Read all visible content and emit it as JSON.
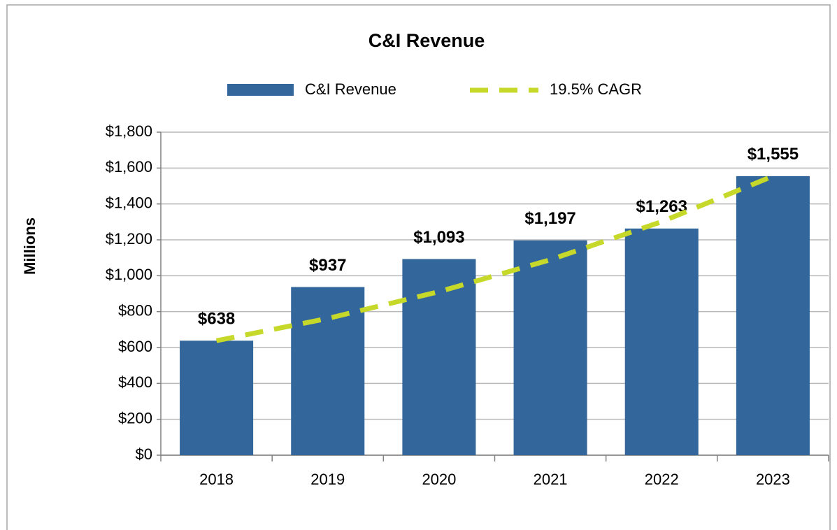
{
  "chart_data": {
    "type": "bar",
    "title": "C&I Revenue",
    "ylabel": "Millions",
    "categories": [
      "2018",
      "2019",
      "2020",
      "2021",
      "2022",
      "2023"
    ],
    "series": [
      {
        "name": "C&I Revenue",
        "type": "bar",
        "color": "#33669a",
        "values": [
          638,
          937,
          1093,
          1197,
          1263,
          1555
        ],
        "value_labels": [
          "$638",
          "$937",
          "$1,093",
          "$1,197",
          "$1,263",
          "$1,555"
        ]
      },
      {
        "name": "19.5% CAGR",
        "type": "line",
        "color": "#c6d82a",
        "dashed": true,
        "values": [
          638,
          762,
          911,
          1089,
          1301,
          1555
        ]
      }
    ],
    "ylim": [
      0,
      1800
    ],
    "yticks": [
      {
        "value": 0,
        "label": "$0"
      },
      {
        "value": 200,
        "label": "$200"
      },
      {
        "value": 400,
        "label": "$400"
      },
      {
        "value": 600,
        "label": "$600"
      },
      {
        "value": 800,
        "label": "$800"
      },
      {
        "value": 1000,
        "label": "$1,000"
      },
      {
        "value": 1200,
        "label": "$1,200"
      },
      {
        "value": 1400,
        "label": "$1,400"
      },
      {
        "value": 1600,
        "label": "$1,600"
      },
      {
        "value": 1800,
        "label": "$1,800"
      }
    ],
    "grid": true
  }
}
